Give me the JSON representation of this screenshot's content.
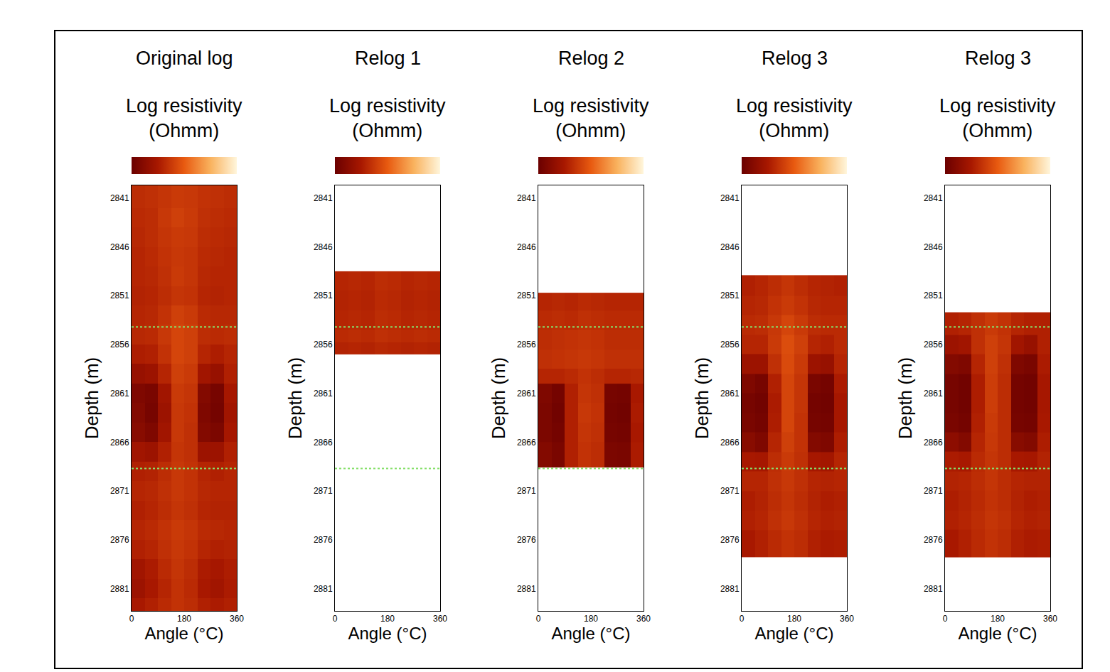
{
  "chart_data": [
    {
      "type": "heatmap",
      "title": "Original log",
      "colorbar_label": "Log resistivity (Ohmm)",
      "x_label": "Angle (°C)",
      "y_label": "Depth (m)",
      "xlim": [
        0,
        360
      ],
      "xticks": [
        0,
        180,
        360
      ],
      "ylim": [
        2883.3,
        2839.7
      ],
      "yticks": [
        2841,
        2846,
        2851,
        2856,
        2861,
        2866,
        2871,
        2876,
        2881
      ],
      "zlim": [
        0,
        1
      ],
      "interval": [
        2854.2,
        2868.7
      ],
      "x_edges": [
        0,
        45,
        90,
        135,
        180,
        225,
        270,
        315,
        360
      ],
      "y_edges": [
        2839.7,
        2842,
        2844,
        2846,
        2848,
        2850,
        2852,
        2854,
        2856,
        2858,
        2860,
        2862,
        2864,
        2866,
        2868,
        2870,
        2872,
        2874,
        2876,
        2878,
        2880,
        2882,
        2883.3
      ],
      "z": [
        [
          0.33,
          0.34,
          0.36,
          0.38,
          0.37,
          0.35,
          0.34,
          0.33
        ],
        [
          0.32,
          0.33,
          0.37,
          0.4,
          0.38,
          0.34,
          0.33,
          0.32
        ],
        [
          0.31,
          0.33,
          0.36,
          0.38,
          0.37,
          0.33,
          0.32,
          0.31
        ],
        [
          0.3,
          0.32,
          0.35,
          0.37,
          0.36,
          0.32,
          0.31,
          0.3
        ],
        [
          0.3,
          0.31,
          0.34,
          0.38,
          0.36,
          0.31,
          0.3,
          0.3
        ],
        [
          0.29,
          0.3,
          0.33,
          0.36,
          0.35,
          0.3,
          0.29,
          0.3
        ],
        [
          0.3,
          0.31,
          0.35,
          0.4,
          0.38,
          0.32,
          0.31,
          0.31
        ],
        [
          0.31,
          0.32,
          0.37,
          0.42,
          0.4,
          0.33,
          0.32,
          0.33
        ],
        [
          0.27,
          0.28,
          0.35,
          0.42,
          0.4,
          0.3,
          0.27,
          0.3
        ],
        [
          0.18,
          0.2,
          0.3,
          0.4,
          0.38,
          0.22,
          0.18,
          0.28
        ],
        [
          0.08,
          0.06,
          0.22,
          0.38,
          0.36,
          0.1,
          0.05,
          0.24
        ],
        [
          0.1,
          0.05,
          0.2,
          0.37,
          0.35,
          0.08,
          0.04,
          0.22
        ],
        [
          0.12,
          0.08,
          0.22,
          0.37,
          0.34,
          0.1,
          0.07,
          0.24
        ],
        [
          0.22,
          0.2,
          0.28,
          0.36,
          0.34,
          0.2,
          0.2,
          0.28
        ],
        [
          0.28,
          0.29,
          0.33,
          0.37,
          0.35,
          0.3,
          0.28,
          0.3
        ],
        [
          0.3,
          0.31,
          0.34,
          0.37,
          0.35,
          0.31,
          0.3,
          0.3
        ],
        [
          0.28,
          0.3,
          0.33,
          0.36,
          0.34,
          0.3,
          0.29,
          0.29
        ],
        [
          0.3,
          0.32,
          0.35,
          0.38,
          0.36,
          0.32,
          0.31,
          0.3
        ],
        [
          0.28,
          0.3,
          0.34,
          0.37,
          0.35,
          0.3,
          0.28,
          0.29
        ],
        [
          0.22,
          0.26,
          0.32,
          0.36,
          0.33,
          0.26,
          0.24,
          0.27
        ],
        [
          0.2,
          0.25,
          0.3,
          0.35,
          0.32,
          0.25,
          0.22,
          0.26
        ],
        [
          0.25,
          0.28,
          0.32,
          0.35,
          0.33,
          0.28,
          0.26,
          0.28
        ]
      ]
    },
    {
      "type": "heatmap",
      "title": "Relog 1",
      "colorbar_label": "Log resistivity (Ohmm)",
      "x_label": "Angle (°C)",
      "y_label": "Depth (m)",
      "xlim": [
        0,
        360
      ],
      "xticks": [
        0,
        180,
        360
      ],
      "ylim": [
        2883.3,
        2839.7
      ],
      "yticks": [
        2841,
        2846,
        2851,
        2856,
        2861,
        2866,
        2871,
        2876,
        2881
      ],
      "zlim": [
        0,
        1
      ],
      "interval": [
        2854.2,
        2868.7
      ],
      "x_edges": [
        0,
        45,
        90,
        135,
        180,
        225,
        270,
        315,
        360
      ],
      "y_edges": [
        2848.5,
        2850.5,
        2852.5,
        2854.5,
        2855.8,
        2857.0
      ],
      "z": [
        [
          0.3,
          0.31,
          0.3,
          0.33,
          0.32,
          0.3,
          0.31,
          0.3
        ],
        [
          0.29,
          0.3,
          0.29,
          0.32,
          0.31,
          0.29,
          0.3,
          0.29
        ],
        [
          0.3,
          0.31,
          0.3,
          0.33,
          0.32,
          0.3,
          0.31,
          0.3
        ],
        [
          0.32,
          0.33,
          0.32,
          0.34,
          0.33,
          0.32,
          0.33,
          0.32
        ],
        [
          0.29,
          0.3,
          0.29,
          0.31,
          0.3,
          0.29,
          0.3,
          0.29
        ]
      ]
    },
    {
      "type": "heatmap",
      "title": "Relog 2",
      "colorbar_label": "Log resistivity (Ohmm)",
      "x_label": "Angle (°C)",
      "y_label": "Depth (m)",
      "xlim": [
        0,
        360
      ],
      "xticks": [
        0,
        180,
        360
      ],
      "ylim": [
        2883.3,
        2839.7
      ],
      "yticks": [
        2841,
        2846,
        2851,
        2856,
        2861,
        2866,
        2871,
        2876,
        2881
      ],
      "zlim": [
        0,
        1
      ],
      "interval": [
        2854.2,
        2868.7
      ],
      "x_edges": [
        0,
        45,
        90,
        135,
        180,
        225,
        270,
        315,
        360
      ],
      "y_edges": [
        2850.7,
        2852.5,
        2854.5,
        2856.5,
        2858.5,
        2860,
        2862,
        2864,
        2866,
        2868.6
      ],
      "z": [
        [
          0.3,
          0.31,
          0.3,
          0.32,
          0.31,
          0.3,
          0.3,
          0.3
        ],
        [
          0.32,
          0.33,
          0.32,
          0.34,
          0.33,
          0.32,
          0.32,
          0.32
        ],
        [
          0.33,
          0.34,
          0.35,
          0.36,
          0.35,
          0.33,
          0.33,
          0.33
        ],
        [
          0.34,
          0.35,
          0.36,
          0.37,
          0.36,
          0.34,
          0.34,
          0.34
        ],
        [
          0.3,
          0.3,
          0.32,
          0.35,
          0.33,
          0.3,
          0.3,
          0.31
        ],
        [
          0.08,
          0.04,
          0.28,
          0.36,
          0.34,
          0.05,
          0.04,
          0.25
        ],
        [
          0.07,
          0.03,
          0.28,
          0.37,
          0.35,
          0.04,
          0.03,
          0.26
        ],
        [
          0.07,
          0.04,
          0.28,
          0.36,
          0.34,
          0.05,
          0.04,
          0.25
        ],
        [
          0.1,
          0.06,
          0.28,
          0.35,
          0.33,
          0.07,
          0.06,
          0.26
        ]
      ]
    },
    {
      "type": "heatmap",
      "title": "Relog 3",
      "colorbar_label": "Log resistivity (Ohmm)",
      "x_label": "Angle (°C)",
      "y_label": "Depth (m)",
      "xlim": [
        0,
        360
      ],
      "xticks": [
        0,
        180,
        360
      ],
      "ylim": [
        2883.3,
        2839.7
      ],
      "yticks": [
        2841,
        2846,
        2851,
        2856,
        2861,
        2866,
        2871,
        2876,
        2881
      ],
      "zlim": [
        0,
        1
      ],
      "interval": [
        2854.2,
        2868.7
      ],
      "x_edges": [
        0,
        45,
        90,
        135,
        180,
        225,
        270,
        315,
        360
      ],
      "y_edges": [
        2848.9,
        2851,
        2853,
        2855,
        2857,
        2859,
        2861,
        2863,
        2865,
        2867,
        2869,
        2871,
        2873,
        2875,
        2877.8
      ],
      "z": [
        [
          0.28,
          0.3,
          0.33,
          0.36,
          0.33,
          0.3,
          0.29,
          0.28
        ],
        [
          0.3,
          0.31,
          0.35,
          0.38,
          0.35,
          0.31,
          0.3,
          0.3
        ],
        [
          0.32,
          0.33,
          0.37,
          0.42,
          0.38,
          0.33,
          0.32,
          0.32
        ],
        [
          0.3,
          0.3,
          0.38,
          0.45,
          0.4,
          0.3,
          0.28,
          0.32
        ],
        [
          0.2,
          0.2,
          0.34,
          0.44,
          0.38,
          0.2,
          0.18,
          0.3
        ],
        [
          0.08,
          0.05,
          0.28,
          0.42,
          0.36,
          0.06,
          0.04,
          0.26
        ],
        [
          0.05,
          0.03,
          0.26,
          0.42,
          0.36,
          0.04,
          0.03,
          0.24
        ],
        [
          0.06,
          0.04,
          0.27,
          0.42,
          0.35,
          0.05,
          0.04,
          0.24
        ],
        [
          0.12,
          0.08,
          0.3,
          0.4,
          0.35,
          0.1,
          0.08,
          0.27
        ],
        [
          0.25,
          0.24,
          0.33,
          0.38,
          0.34,
          0.24,
          0.23,
          0.3
        ],
        [
          0.3,
          0.3,
          0.34,
          0.37,
          0.34,
          0.3,
          0.29,
          0.3
        ],
        [
          0.27,
          0.29,
          0.33,
          0.36,
          0.33,
          0.29,
          0.27,
          0.28
        ],
        [
          0.28,
          0.3,
          0.34,
          0.37,
          0.34,
          0.3,
          0.28,
          0.29
        ],
        [
          0.25,
          0.28,
          0.32,
          0.35,
          0.33,
          0.28,
          0.26,
          0.27
        ]
      ]
    },
    {
      "type": "heatmap",
      "title": "Relog 3",
      "colorbar_label": "Log resistivity (Ohmm)",
      "x_label": "Angle (°C)",
      "y_label": "Depth (m)",
      "xlim": [
        0,
        360
      ],
      "xticks": [
        0,
        180,
        360
      ],
      "ylim": [
        2883.3,
        2839.7
      ],
      "yticks": [
        2841,
        2846,
        2851,
        2856,
        2861,
        2866,
        2871,
        2876,
        2881
      ],
      "zlim": [
        0,
        1
      ],
      "interval": [
        2854.2,
        2868.7
      ],
      "x_edges": [
        0,
        45,
        90,
        135,
        180,
        225,
        270,
        315,
        360
      ],
      "y_edges": [
        2852.7,
        2855,
        2857,
        2859,
        2861,
        2863,
        2865,
        2867,
        2869,
        2871,
        2873,
        2875,
        2877.8
      ],
      "z": [
        [
          0.28,
          0.3,
          0.34,
          0.38,
          0.35,
          0.3,
          0.28,
          0.28
        ],
        [
          0.2,
          0.22,
          0.34,
          0.4,
          0.36,
          0.22,
          0.18,
          0.28
        ],
        [
          0.1,
          0.08,
          0.3,
          0.4,
          0.34,
          0.08,
          0.06,
          0.26
        ],
        [
          0.05,
          0.03,
          0.27,
          0.39,
          0.33,
          0.04,
          0.03,
          0.24
        ],
        [
          0.05,
          0.03,
          0.27,
          0.39,
          0.33,
          0.04,
          0.03,
          0.24
        ],
        [
          0.06,
          0.04,
          0.28,
          0.38,
          0.33,
          0.05,
          0.04,
          0.25
        ],
        [
          0.14,
          0.1,
          0.3,
          0.37,
          0.33,
          0.12,
          0.1,
          0.27
        ],
        [
          0.26,
          0.25,
          0.32,
          0.36,
          0.33,
          0.25,
          0.24,
          0.29
        ],
        [
          0.29,
          0.3,
          0.33,
          0.36,
          0.33,
          0.3,
          0.29,
          0.29
        ],
        [
          0.27,
          0.29,
          0.32,
          0.35,
          0.33,
          0.29,
          0.27,
          0.28
        ],
        [
          0.28,
          0.3,
          0.33,
          0.36,
          0.34,
          0.3,
          0.28,
          0.29
        ],
        [
          0.25,
          0.28,
          0.32,
          0.35,
          0.33,
          0.28,
          0.26,
          0.27
        ]
      ]
    }
  ]
}
